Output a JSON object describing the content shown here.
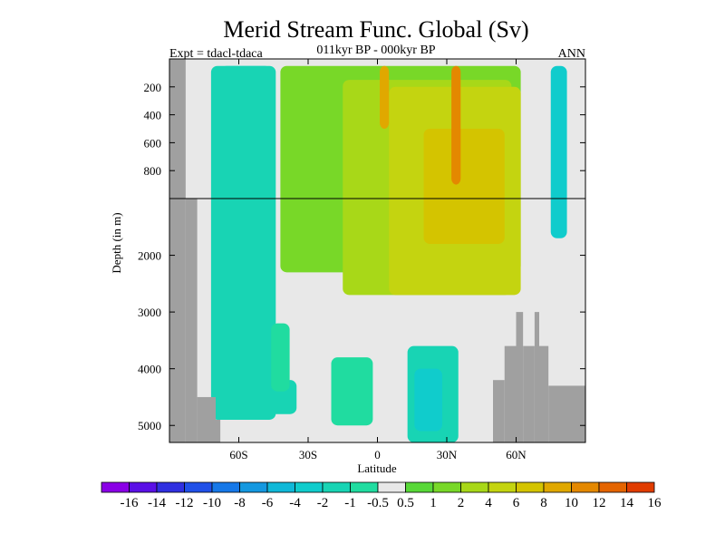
{
  "chart_data": {
    "type": "heatmap",
    "title": "Merid Stream Func. Global (Sv)",
    "subtitle_left": "Expt = tdacl-tdaca",
    "subtitle_center": "011kyr BP - 000kyr BP",
    "subtitle_right": "ANN",
    "xlabel": "Latitude",
    "ylabel": "Depth (in m)",
    "xlim": [
      -90,
      90
    ],
    "ylim": [
      0,
      5300
    ],
    "depth_break": 1000,
    "x_ticks": [
      {
        "value": -60,
        "label": "60S"
      },
      {
        "value": -30,
        "label": "30S"
      },
      {
        "value": 0,
        "label": "0"
      },
      {
        "value": 30,
        "label": "30N"
      },
      {
        "value": 60,
        "label": "60N"
      }
    ],
    "y_ticks_upper": [
      {
        "value": 200,
        "label": "200"
      },
      {
        "value": 400,
        "label": "400"
      },
      {
        "value": 600,
        "label": "600"
      },
      {
        "value": 800,
        "label": "800"
      }
    ],
    "y_ticks_lower": [
      {
        "value": 2000,
        "label": "2000"
      },
      {
        "value": 3000,
        "label": "3000"
      },
      {
        "value": 4000,
        "label": "4000"
      },
      {
        "value": 5000,
        "label": "5000"
      }
    ],
    "colorbar": {
      "labels": [
        "-16",
        "-14",
        "-12",
        "-10",
        "-8",
        "-6",
        "-4",
        "-2",
        "-1",
        "-0.5",
        "0.5",
        "1",
        "2",
        "4",
        "6",
        "8",
        "10",
        "12",
        "14",
        "16"
      ],
      "colors": [
        "#8a00e6",
        "#5a10e6",
        "#3030e0",
        "#2050e8",
        "#1678e8",
        "#1498e0",
        "#10b8d8",
        "#10cccc",
        "#18d4b4",
        "#20dca0",
        "#e8e8e8",
        "#58d838",
        "#78d828",
        "#a8d818",
        "#c4d410",
        "#d4c400",
        "#e0a800",
        "#e48800",
        "#e46400",
        "#e03c00"
      ]
    },
    "mask_color": "#a0a0a0",
    "background_color": "#e8e8e8",
    "regions": [
      {
        "name": "southern-cell",
        "value": -3,
        "lat": [
          -68,
          -46
        ],
        "depth": [
          50,
          4650
        ]
      },
      {
        "name": "southern-cell-edge",
        "value": -1,
        "lat": [
          -72,
          -44
        ],
        "depth": [
          50,
          4900
        ]
      },
      {
        "name": "southern-cell-deep",
        "value": -1,
        "lat": [
          -65,
          -35
        ],
        "depth": [
          4200,
          4800
        ]
      },
      {
        "name": "abyssal-pocket",
        "value": -0.5,
        "lat": [
          -20,
          -2
        ],
        "depth": [
          3800,
          5000
        ]
      },
      {
        "name": "abyssal-cell",
        "value": -1,
        "lat": [
          13,
          35
        ],
        "depth": [
          3600,
          5300
        ]
      },
      {
        "name": "abyssal-cell-core",
        "value": -2,
        "lat": [
          16,
          28
        ],
        "depth": [
          4000,
          5100
        ]
      },
      {
        "name": "southern-ocean-flank",
        "value": -0.5,
        "lat": [
          -46,
          -38
        ],
        "depth": [
          3200,
          4400
        ]
      },
      {
        "name": "northern-edge-cell",
        "value": -2,
        "lat": [
          75,
          82
        ],
        "depth": [
          50,
          1700
        ]
      },
      {
        "name": "upper-overturning",
        "value": 1,
        "lat": [
          -42,
          62
        ],
        "depth": [
          50,
          2300
        ]
      },
      {
        "name": "upper-overturning-core",
        "value": 2,
        "lat": [
          -15,
          58
        ],
        "depth": [
          150,
          2700
        ]
      },
      {
        "name": "nadw-core",
        "value": 4,
        "lat": [
          5,
          62
        ],
        "depth": [
          200,
          2700
        ]
      },
      {
        "name": "nadw-max",
        "value": 6,
        "lat": [
          20,
          55
        ],
        "depth": [
          500,
          1800
        ]
      },
      {
        "name": "narrow-overturning-1",
        "value": 8,
        "lat": [
          1,
          5
        ],
        "depth": [
          50,
          500
        ]
      },
      {
        "name": "narrow-overturning-2",
        "value": 10,
        "lat": [
          32,
          36
        ],
        "depth": [
          50,
          900
        ]
      }
    ],
    "land_mask": [
      {
        "lat": [
          -90,
          -83
        ],
        "depth": [
          0,
          5300
        ]
      },
      {
        "lat": [
          -83,
          -78
        ],
        "depth": [
          1000,
          5300
        ]
      },
      {
        "lat": [
          -78,
          -70
        ],
        "depth": [
          4500,
          5300
        ]
      },
      {
        "lat": [
          -70,
          -68
        ],
        "depth": [
          4900,
          5300
        ]
      },
      {
        "lat": [
          50,
          55
        ],
        "depth": [
          4200,
          5300
        ]
      },
      {
        "lat": [
          55,
          60
        ],
        "depth": [
          3600,
          5300
        ]
      },
      {
        "lat": [
          60,
          63
        ],
        "depth": [
          3000,
          5300
        ]
      },
      {
        "lat": [
          63,
          68
        ],
        "depth": [
          3600,
          5300
        ]
      },
      {
        "lat": [
          68,
          70
        ],
        "depth": [
          3000,
          5300
        ]
      },
      {
        "lat": [
          70,
          74
        ],
        "depth": [
          3600,
          5300
        ]
      },
      {
        "lat": [
          74,
          90
        ],
        "depth": [
          4300,
          5300
        ]
      }
    ]
  }
}
